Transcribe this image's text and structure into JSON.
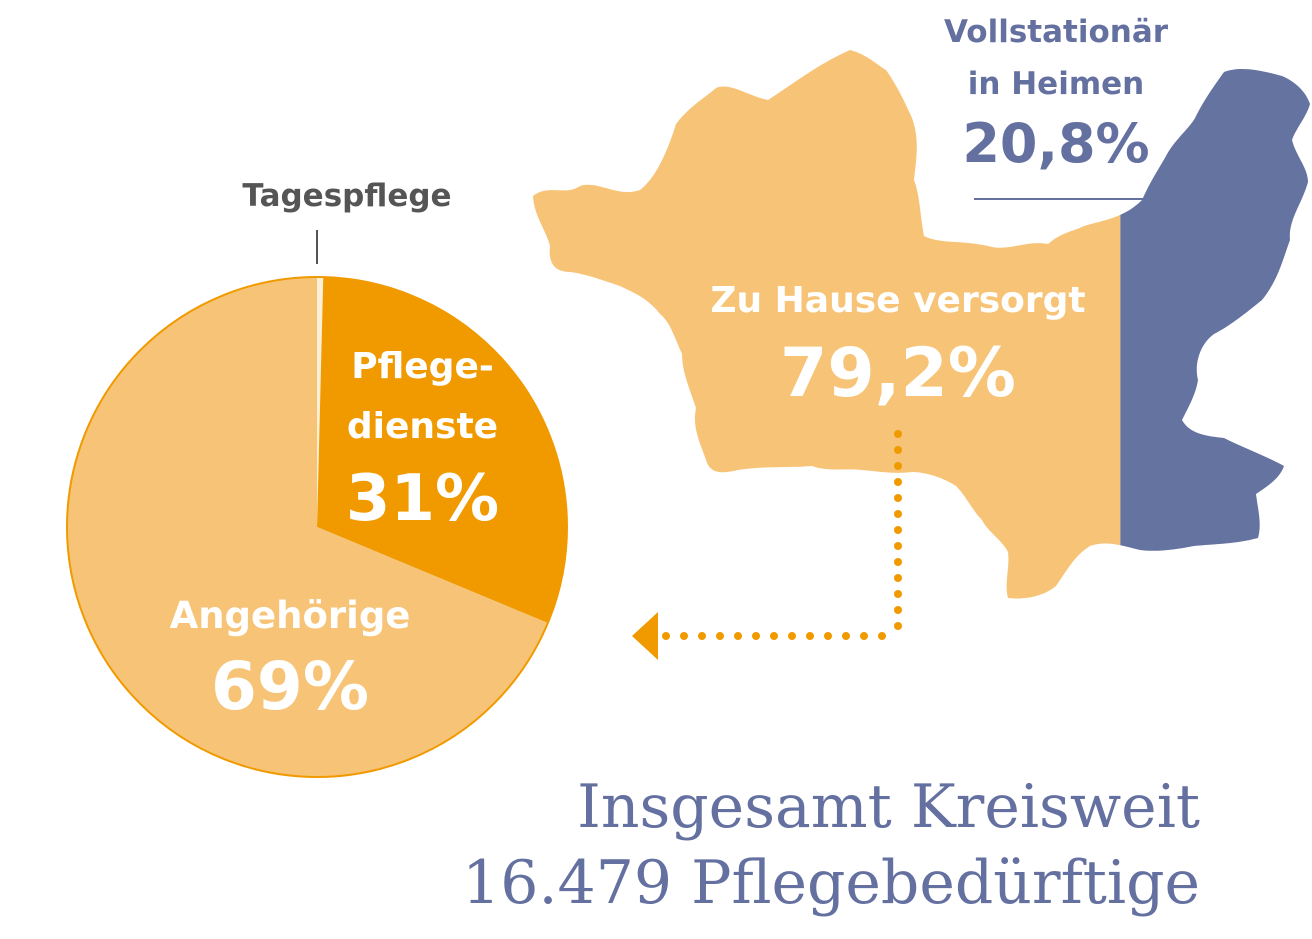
{
  "chart_data": [
    {
      "type": "pie",
      "categories": [
        "Tagespflege",
        "Pflegedienste",
        "Angehörige"
      ],
      "values": [
        0.4,
        31,
        69
      ],
      "labels": {
        "tagespflege": "Tagespflege",
        "pflegedienste_line1": "Pflege-",
        "pflegedienste_line2": "dienste",
        "pflegedienste_value": "31%",
        "angehoerige": "Angehörige",
        "angehoerige_value": "69%"
      },
      "colors": {
        "pflegedienste": "#f09a00",
        "angehoerige": "#f7c477",
        "tagespflege": "#fdf0d8",
        "outline": "#f09a00"
      }
    },
    {
      "type": "bar",
      "categories": [
        "Zu Hause versorgt",
        "Vollstationär in Heimen"
      ],
      "values": [
        79.2,
        20.8
      ],
      "labels": {
        "home": "Zu Hause versorgt",
        "home_value": "79,2%",
        "heime_line1": "Vollstationär",
        "heime_line2": "in Heimen",
        "heime_value": "20,8%"
      },
      "colors": {
        "home": "#f7c477",
        "heime": "#6573a1",
        "connector": "#f09a00"
      }
    }
  ],
  "footer": {
    "line1": "Insgesamt Kreisweit",
    "line2": "16.479 Pflegebedürftige"
  },
  "colors": {
    "heime_text": "#6470a0",
    "tagespflege_text": "#555555",
    "footer_text": "#6470a0"
  }
}
